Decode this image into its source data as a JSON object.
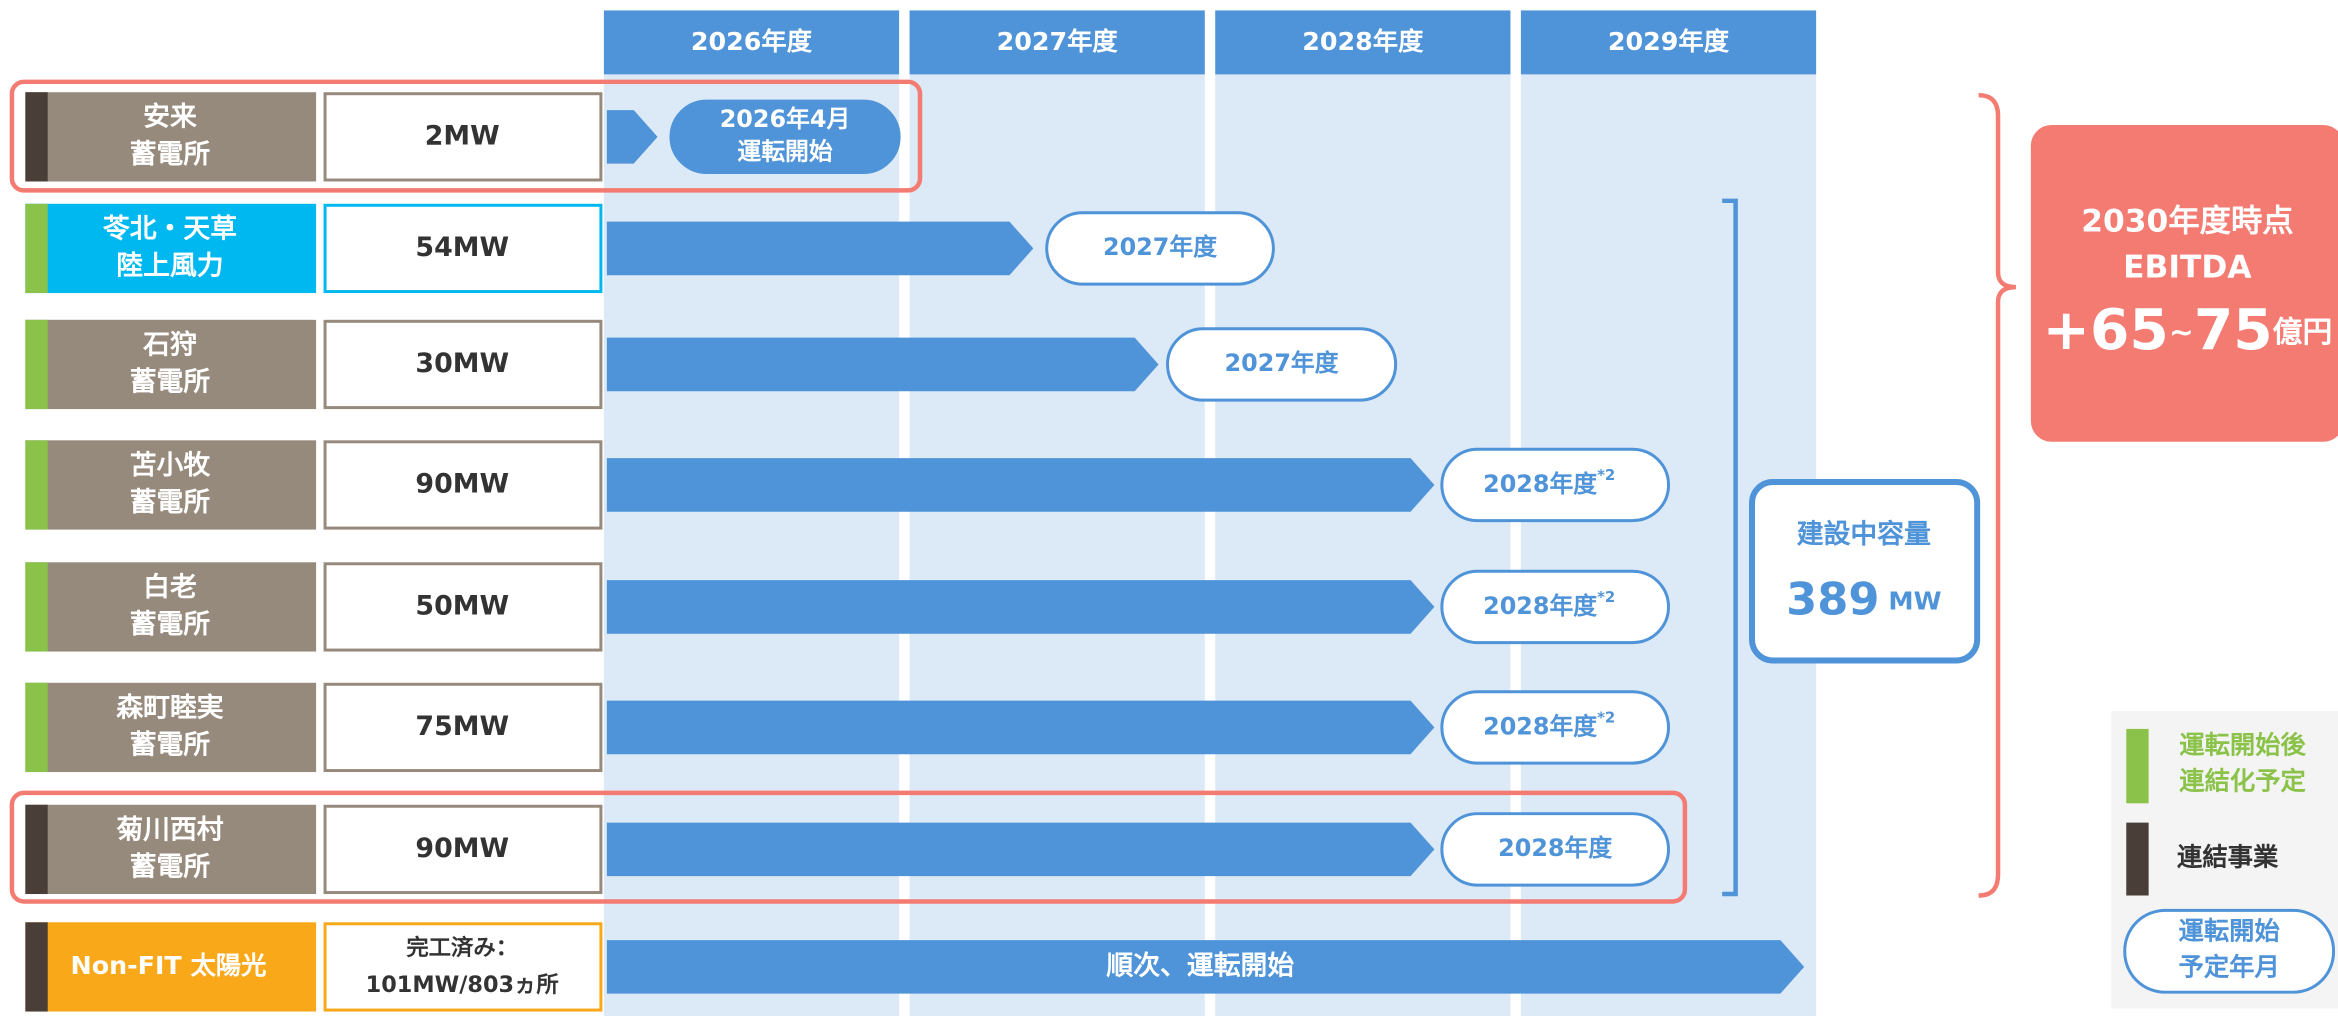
{
  "years": [
    "2026年度",
    "2027年度",
    "2028年度",
    "2029年度"
  ],
  "projects": [
    {
      "name": [
        "安来",
        "蓄電所"
      ],
      "capacity": [
        "2MW"
      ],
      "target": [
        "2026年4月",
        "運転開始"
      ]
    },
    {
      "name": [
        "苓北・天草",
        "陸上風力"
      ],
      "capacity": [
        "54MW"
      ],
      "target": [
        "2027年度"
      ]
    },
    {
      "name": [
        "石狩",
        "蓄電所"
      ],
      "capacity": [
        "30MW"
      ],
      "target": [
        "2027年度"
      ]
    },
    {
      "name": [
        "苫小牧",
        "蓄電所"
      ],
      "capacity": [
        "90MW"
      ],
      "target": [
        "2028年度"
      ],
      "note": "*2"
    },
    {
      "name": [
        "白老",
        "蓄電所"
      ],
      "capacity": [
        "50MW"
      ],
      "target": [
        "2028年度"
      ],
      "note": "*2"
    },
    {
      "name": [
        "森町睦実",
        "蓄電所"
      ],
      "capacity": [
        "75MW"
      ],
      "target": [
        "2028年度"
      ],
      "note": "*2"
    },
    {
      "name": [
        "菊川西村",
        "蓄電所"
      ],
      "capacity": [
        "90MW"
      ],
      "target": [
        "2028年度"
      ]
    },
    {
      "name": [
        "Non-FIT 太陽光"
      ],
      "capacity": [
        "完工済み：",
        "101MW/803ヵ所"
      ],
      "bar_label": "順次、運転開始"
    }
  ],
  "construction": {
    "label": "建設中容量",
    "value": "389",
    "unit": "MW"
  },
  "ebitda": {
    "lines": [
      "2030年度時点",
      "EBITDA"
    ],
    "value": [
      "+65",
      "~",
      "75"
    ],
    "unit": "億円"
  },
  "legend": {
    "consolidate_later": [
      "運転開始後",
      "連結化予定"
    ],
    "consolidated": [
      "連結事業"
    ],
    "start_date": [
      "運転開始",
      "予定年月"
    ]
  }
}
